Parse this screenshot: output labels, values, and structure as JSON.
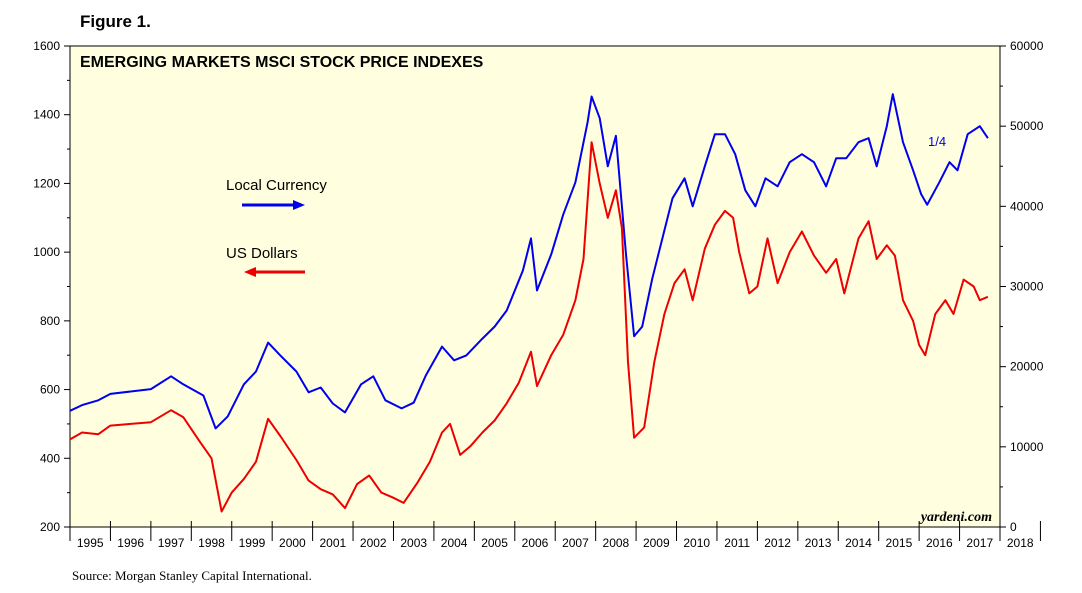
{
  "figure_label": "Figure 1.",
  "source": "Source: Morgan Stanley Capital International.",
  "colors": {
    "local": "#0000ee",
    "usd": "#ee0000",
    "plot_bg": "#ffffe0"
  },
  "chart_data": {
    "type": "line",
    "title": "EMERGING MARKETS MSCI STOCK PRICE INDEXES",
    "credit": "yardeni.com",
    "end_annotation": "1/4",
    "x_years": [
      "1995",
      "1996",
      "1997",
      "1998",
      "1999",
      "2000",
      "2001",
      "2002",
      "2003",
      "2004",
      "2005",
      "2006",
      "2007",
      "2008",
      "2009",
      "2010",
      "2011",
      "2012",
      "2013",
      "2014",
      "2015",
      "2016",
      "2017",
      "2018"
    ],
    "x_range": [
      1995.0,
      2018.0
    ],
    "y_left": {
      "ticks": [
        200,
        400,
        600,
        800,
        1000,
        1200,
        1400,
        1600
      ],
      "range": [
        200,
        1600
      ]
    },
    "y_right": {
      "ticks": [
        0,
        10000,
        20000,
        30000,
        40000,
        50000,
        60000
      ],
      "range": [
        0,
        60000
      ]
    },
    "legend_position": "left-middle",
    "series": [
      {
        "name": "Local Currency",
        "axis": "right",
        "color": "#0000ee",
        "points": [
          [
            1995.0,
            14500
          ],
          [
            1995.3,
            15200
          ],
          [
            1995.7,
            15800
          ],
          [
            1996.0,
            16600
          ],
          [
            1996.5,
            16900
          ],
          [
            1997.0,
            17200
          ],
          [
            1997.5,
            18800
          ],
          [
            1997.8,
            17800
          ],
          [
            1998.3,
            16400
          ],
          [
            1998.6,
            12300
          ],
          [
            1998.9,
            13800
          ],
          [
            1999.3,
            17800
          ],
          [
            1999.6,
            19400
          ],
          [
            1999.9,
            23000
          ],
          [
            2000.2,
            21400
          ],
          [
            2000.6,
            19400
          ],
          [
            2000.9,
            16800
          ],
          [
            2001.2,
            17400
          ],
          [
            2001.5,
            15400
          ],
          [
            2001.8,
            14300
          ],
          [
            2002.2,
            17800
          ],
          [
            2002.5,
            18800
          ],
          [
            2002.8,
            15800
          ],
          [
            2003.2,
            14800
          ],
          [
            2003.5,
            15500
          ],
          [
            2003.8,
            18900
          ],
          [
            2004.2,
            22500
          ],
          [
            2004.5,
            20800
          ],
          [
            2004.8,
            21400
          ],
          [
            2005.2,
            23500
          ],
          [
            2005.5,
            25000
          ],
          [
            2005.8,
            27000
          ],
          [
            2006.2,
            32000
          ],
          [
            2006.4,
            36000
          ],
          [
            2006.55,
            29500
          ],
          [
            2006.9,
            34000
          ],
          [
            2007.2,
            39000
          ],
          [
            2007.5,
            43000
          ],
          [
            2007.8,
            50500
          ],
          [
            2007.9,
            53700
          ],
          [
            2008.1,
            51000
          ],
          [
            2008.3,
            45000
          ],
          [
            2008.5,
            48800
          ],
          [
            2008.75,
            34000
          ],
          [
            2008.95,
            23800
          ],
          [
            2009.15,
            25000
          ],
          [
            2009.4,
            31000
          ],
          [
            2009.7,
            37000
          ],
          [
            2009.9,
            41000
          ],
          [
            2010.2,
            43500
          ],
          [
            2010.4,
            40000
          ],
          [
            2010.7,
            45000
          ],
          [
            2010.95,
            49000
          ],
          [
            2011.2,
            49000
          ],
          [
            2011.45,
            46500
          ],
          [
            2011.7,
            42000
          ],
          [
            2011.95,
            40000
          ],
          [
            2012.2,
            43500
          ],
          [
            2012.5,
            42500
          ],
          [
            2012.8,
            45500
          ],
          [
            2013.1,
            46500
          ],
          [
            2013.4,
            45500
          ],
          [
            2013.7,
            42500
          ],
          [
            2013.95,
            46000
          ],
          [
            2014.2,
            46000
          ],
          [
            2014.5,
            48000
          ],
          [
            2014.75,
            48500
          ],
          [
            2014.95,
            45000
          ],
          [
            2015.2,
            50000
          ],
          [
            2015.35,
            54000
          ],
          [
            2015.6,
            48000
          ],
          [
            2015.85,
            44500
          ],
          [
            2016.05,
            41500
          ],
          [
            2016.2,
            40200
          ],
          [
            2016.5,
            43000
          ],
          [
            2016.75,
            45500
          ],
          [
            2016.95,
            44500
          ],
          [
            2017.2,
            49000
          ],
          [
            2017.5,
            50000
          ],
          [
            2017.7,
            48500
          ]
        ]
      },
      {
        "name": "US Dollars",
        "axis": "left",
        "color": "#ee0000",
        "points": [
          [
            1995.0,
            455
          ],
          [
            1995.3,
            475
          ],
          [
            1995.7,
            470
          ],
          [
            1996.0,
            495
          ],
          [
            1996.5,
            500
          ],
          [
            1997.0,
            505
          ],
          [
            1997.5,
            540
          ],
          [
            1997.8,
            520
          ],
          [
            1998.2,
            450
          ],
          [
            1998.5,
            400
          ],
          [
            1998.75,
            245
          ],
          [
            1999.0,
            300
          ],
          [
            1999.3,
            340
          ],
          [
            1999.6,
            390
          ],
          [
            1999.9,
            515
          ],
          [
            2000.2,
            465
          ],
          [
            2000.6,
            395
          ],
          [
            2000.9,
            335
          ],
          [
            2001.2,
            310
          ],
          [
            2001.5,
            295
          ],
          [
            2001.8,
            255
          ],
          [
            2002.1,
            325
          ],
          [
            2002.4,
            350
          ],
          [
            2002.7,
            300
          ],
          [
            2003.0,
            285
          ],
          [
            2003.25,
            270
          ],
          [
            2003.6,
            330
          ],
          [
            2003.9,
            390
          ],
          [
            2004.2,
            475
          ],
          [
            2004.4,
            500
          ],
          [
            2004.65,
            410
          ],
          [
            2004.9,
            435
          ],
          [
            2005.2,
            475
          ],
          [
            2005.5,
            510
          ],
          [
            2005.8,
            560
          ],
          [
            2006.1,
            620
          ],
          [
            2006.4,
            710
          ],
          [
            2006.55,
            610
          ],
          [
            2006.9,
            700
          ],
          [
            2007.2,
            760
          ],
          [
            2007.5,
            860
          ],
          [
            2007.7,
            980
          ],
          [
            2007.9,
            1320
          ],
          [
            2008.1,
            1200
          ],
          [
            2008.3,
            1100
          ],
          [
            2008.5,
            1180
          ],
          [
            2008.65,
            1070
          ],
          [
            2008.8,
            680
          ],
          [
            2008.95,
            460
          ],
          [
            2009.2,
            490
          ],
          [
            2009.45,
            680
          ],
          [
            2009.7,
            820
          ],
          [
            2009.95,
            910
          ],
          [
            2010.2,
            950
          ],
          [
            2010.4,
            860
          ],
          [
            2010.7,
            1010
          ],
          [
            2010.95,
            1080
          ],
          [
            2011.2,
            1120
          ],
          [
            2011.4,
            1100
          ],
          [
            2011.55,
            1000
          ],
          [
            2011.8,
            880
          ],
          [
            2012.0,
            900
          ],
          [
            2012.25,
            1040
          ],
          [
            2012.5,
            910
          ],
          [
            2012.8,
            1000
          ],
          [
            2013.1,
            1060
          ],
          [
            2013.4,
            990
          ],
          [
            2013.7,
            940
          ],
          [
            2013.95,
            980
          ],
          [
            2014.15,
            880
          ],
          [
            2014.5,
            1040
          ],
          [
            2014.75,
            1090
          ],
          [
            2014.95,
            980
          ],
          [
            2015.2,
            1020
          ],
          [
            2015.4,
            990
          ],
          [
            2015.6,
            860
          ],
          [
            2015.85,
            800
          ],
          [
            2016.0,
            730
          ],
          [
            2016.15,
            700
          ],
          [
            2016.4,
            820
          ],
          [
            2016.65,
            860
          ],
          [
            2016.85,
            820
          ],
          [
            2017.1,
            920
          ],
          [
            2017.35,
            900
          ],
          [
            2017.5,
            860
          ],
          [
            2017.7,
            870
          ]
        ]
      }
    ]
  }
}
